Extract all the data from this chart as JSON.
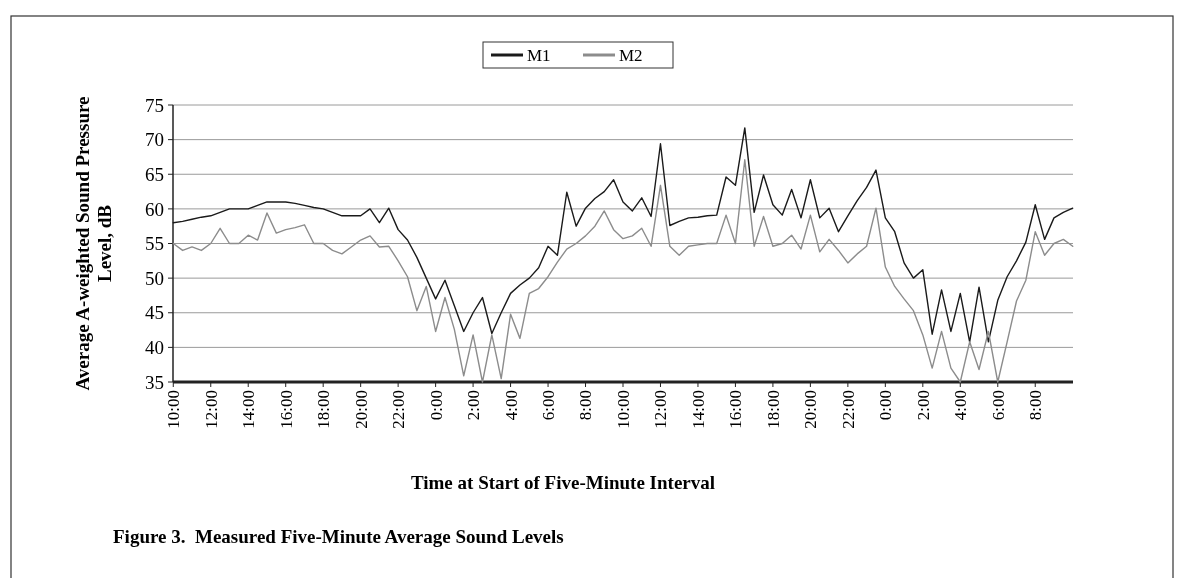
{
  "chart_data": {
    "type": "line",
    "title": "Figure 3.  Measured Five-Minute Average Sound Levels",
    "xlabel": "Time at Start of Five-Minute Interval",
    "ylabel": "Average A-weighted Sound Pressure Level, dB",
    "ylim": [
      35,
      75
    ],
    "yticks": [
      35,
      40,
      45,
      50,
      55,
      60,
      65,
      70,
      75
    ],
    "categories": [
      "10:00",
      null,
      null,
      null,
      "12:00",
      null,
      null,
      null,
      "14:00",
      null,
      null,
      null,
      "16:00",
      null,
      null,
      null,
      "18:00",
      null,
      null,
      null,
      "20:00",
      null,
      null,
      null,
      "22:00",
      null,
      null,
      null,
      "0:00",
      null,
      null,
      null,
      "2:00",
      null,
      null,
      null,
      "4:00",
      null,
      null,
      null,
      "6:00",
      null,
      null,
      null,
      "8:00",
      null,
      null,
      null,
      "10:00",
      null,
      null,
      null,
      "12:00",
      null,
      null,
      null,
      "14:00",
      null,
      null,
      null,
      "16:00",
      null,
      null,
      null,
      "18:00",
      null,
      null,
      null,
      "20:00",
      null,
      null,
      null,
      "22:00",
      null,
      null,
      null,
      "0:00",
      null,
      null,
      null,
      "2:00",
      null,
      null,
      null,
      "4:00",
      null,
      null,
      null,
      "6:00",
      null,
      null,
      null,
      "8:00",
      null,
      null,
      null,
      null
    ],
    "grid": "y",
    "legend": "top",
    "marker": "none",
    "line_style": "solid",
    "series": [
      {
        "name": "M1",
        "color": "#1a1a1a",
        "values": [
          58,
          58.2,
          58.5,
          58.8,
          59,
          59.5,
          60,
          60,
          60,
          60.5,
          61,
          61,
          61,
          60.8,
          60.5,
          60.2,
          60,
          59.5,
          59,
          59,
          59,
          60,
          58,
          60.1,
          57,
          55.5,
          53,
          50,
          47,
          49.7,
          46,
          42.3,
          45,
          47.2,
          42,
          45,
          47.8,
          49,
          50,
          51.5,
          54.6,
          53.3,
          62.4,
          57.5,
          60.1,
          61.5,
          62.5,
          64.2,
          61,
          59.7,
          61.6,
          58.9,
          69.4,
          57.6,
          58.2,
          58.7,
          58.8,
          59,
          59.1,
          64.6,
          63.4,
          71.7,
          59.5,
          64.9,
          60.6,
          59.1,
          62.8,
          58.7,
          64.2,
          58.7,
          60.1,
          56.7,
          59,
          61.2,
          63.1,
          65.6,
          58.7,
          56.7,
          52.2,
          50,
          51.2,
          41.9,
          48.3,
          42.3,
          47.8,
          40.8,
          48.7,
          40.8,
          46.8,
          50.2,
          52.5,
          55.2,
          60.6,
          55.6,
          58.7,
          59.5,
          60.1
        ]
      },
      {
        "name": "M2",
        "color": "#8c8c8c",
        "values": [
          55,
          54,
          54.5,
          54,
          55,
          57.2,
          55,
          55,
          56.2,
          55.5,
          59.4,
          56.5,
          57,
          57.3,
          57.7,
          55,
          55,
          54,
          53.5,
          54.5,
          55.5,
          56.1,
          54.5,
          54.6,
          52.5,
          50.2,
          45.3,
          48.8,
          42.3,
          47.2,
          42.6,
          35.9,
          41.8,
          35,
          41.8,
          35.5,
          44.8,
          41.3,
          47.8,
          48.5,
          50.2,
          52.3,
          54.2,
          55,
          56.1,
          57.5,
          59.7,
          57,
          55.7,
          56.1,
          57.2,
          54.6,
          63.4,
          54.6,
          53.3,
          54.6,
          54.8,
          55,
          55,
          59.1,
          55,
          67.1,
          54.6,
          58.9,
          54.6,
          55,
          56.2,
          54.2,
          59.1,
          53.8,
          55.6,
          54,
          52.2,
          53.5,
          54.6,
          60.1,
          51.6,
          48.8,
          47,
          45.3,
          41.8,
          37,
          42.3,
          37,
          35,
          40.8,
          36.8,
          42.3,
          35,
          40.8,
          46.7,
          49.7,
          56.7,
          53.3,
          55,
          55.6,
          54.6
        ]
      }
    ]
  }
}
